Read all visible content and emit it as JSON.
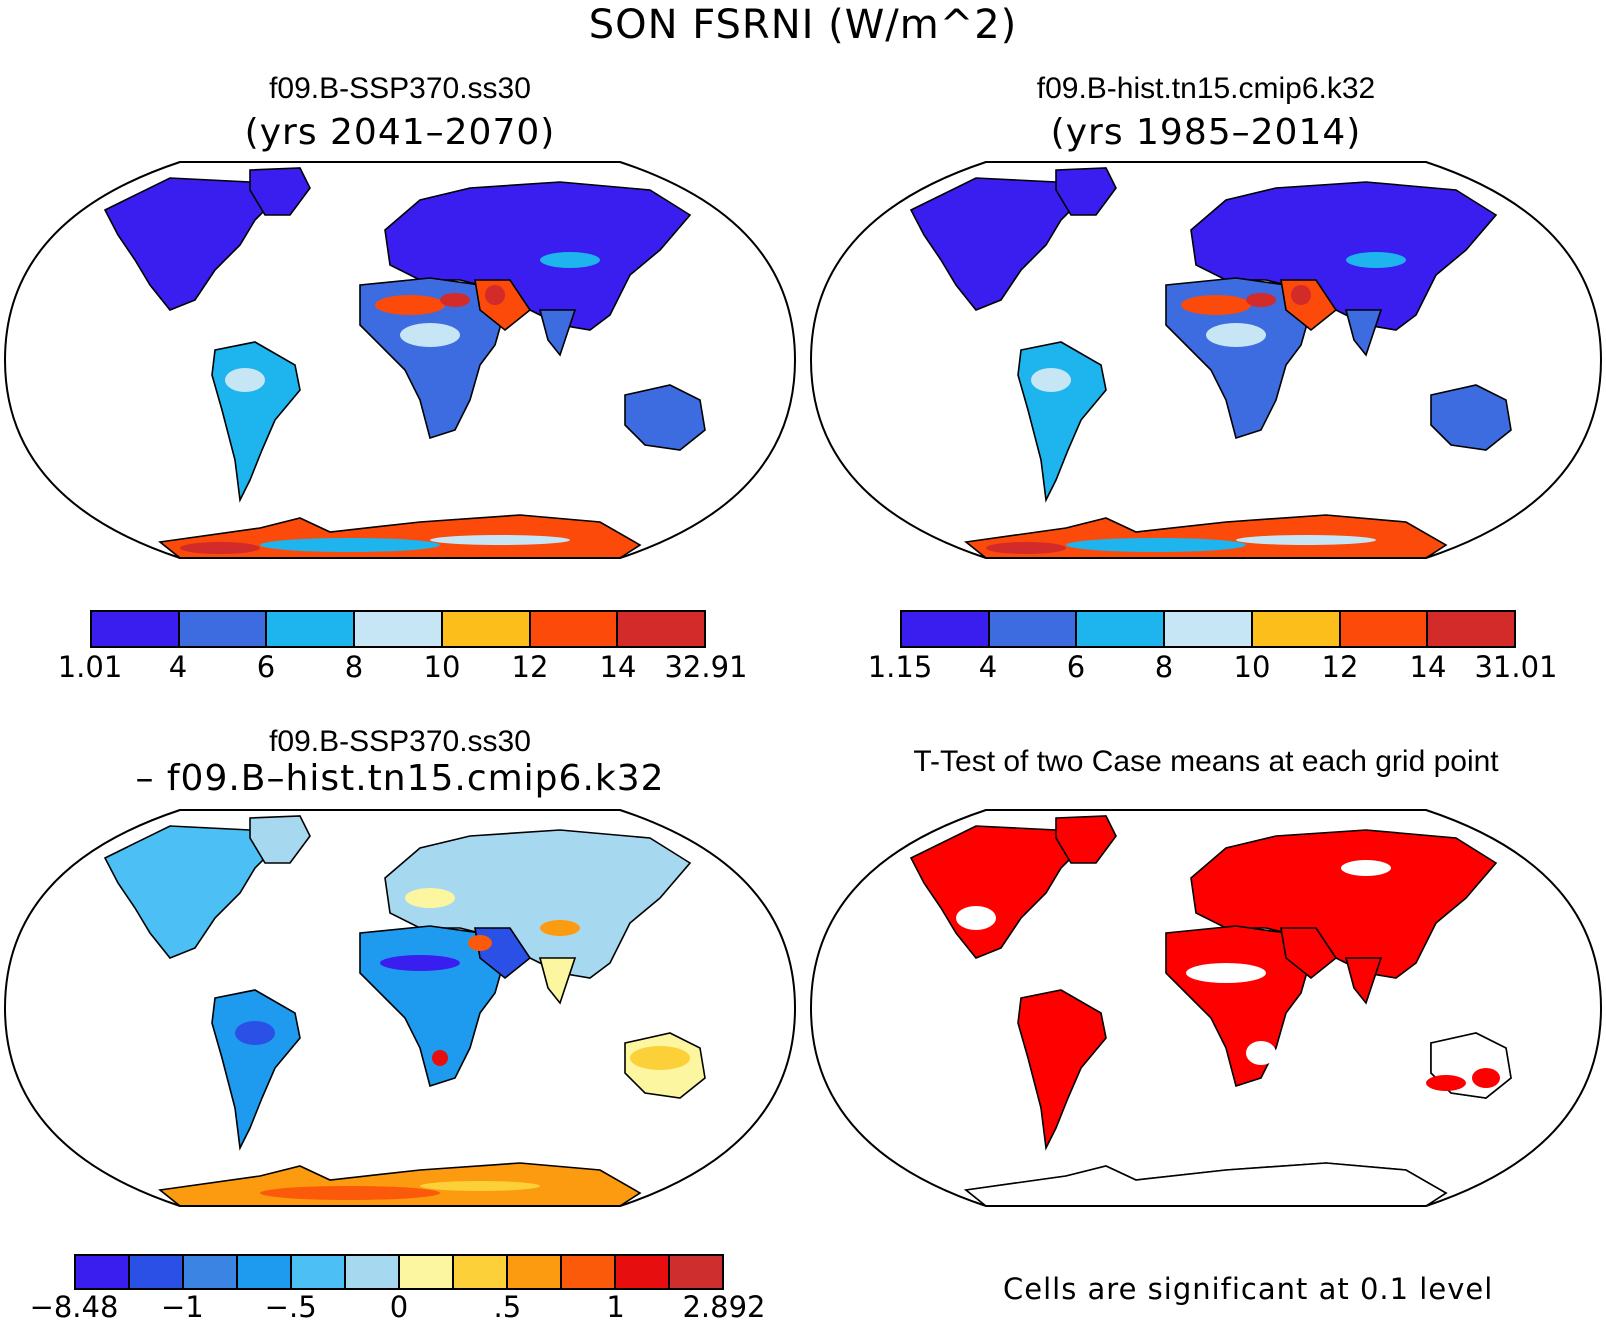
{
  "title": "SON FSRNI (W/m^2)",
  "colors": {
    "scale8": [
      "#3a1ef0",
      "#3c6ce0",
      "#1eb4ee",
      "#c6e6f6",
      "#fbbe1a",
      "#fb4a0a",
      "#d32a2a"
    ],
    "diff12": [
      "#3a1ef0",
      "#2a50e6",
      "#3c84e4",
      "#1e9aee",
      "#4cc0f4",
      "#a6d8f0",
      "#fdf6a0",
      "#fcd038",
      "#fc9a10",
      "#fb5a0a",
      "#e60e0e",
      "#cf2e2e"
    ],
    "sig": "#ff0000"
  },
  "panels": {
    "p1": {
      "title": "f09.B-SSP370.ss30",
      "subtitle": "(yrs 2041–2070)",
      "colorbar": [
        "1.01",
        "4",
        "6",
        "8",
        "10",
        "12",
        "14",
        "32.91"
      ]
    },
    "p2": {
      "title": "f09.B-hist.tn15.cmip6.k32",
      "subtitle": "(yrs 1985–2014)",
      "colorbar": [
        "1.15",
        "4",
        "6",
        "8",
        "10",
        "12",
        "14",
        "31.01"
      ]
    },
    "p3": {
      "title": "f09.B-SSP370.ss30",
      "subtitle": "– f09.B–hist.tn15.cmip6.k32",
      "colorbar": [
        "−8.48",
        "−1",
        "−.5",
        "0",
        ".5",
        "1",
        "2.892"
      ]
    },
    "p4": {
      "title": "T-Test of two Case means at each grid point",
      "note": "Cells are significant at 0.1 level"
    }
  }
}
